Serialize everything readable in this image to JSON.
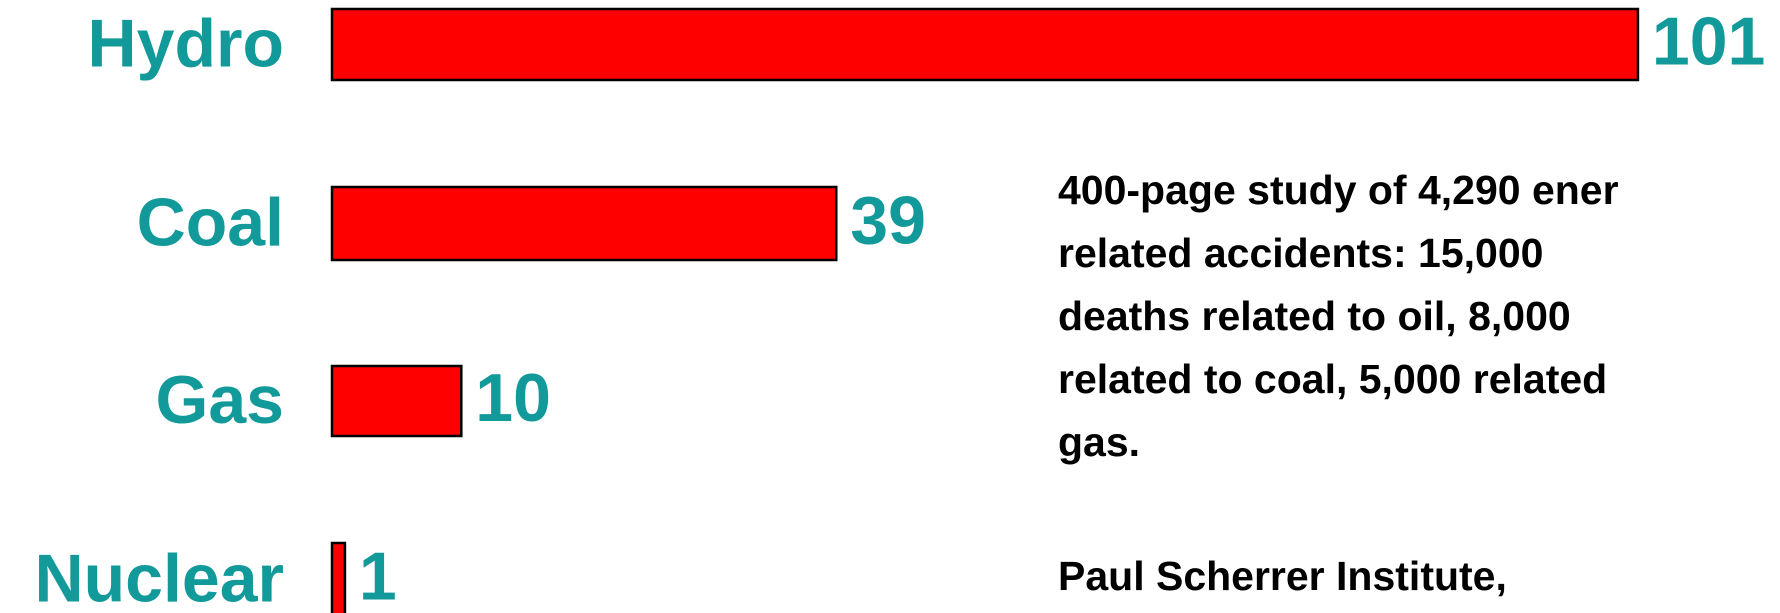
{
  "chart_data": {
    "type": "bar",
    "orientation": "horizontal",
    "categories": [
      "Hydro",
      "Coal",
      "Gas",
      "Nuclear"
    ],
    "values": [
      101,
      39,
      10,
      1
    ],
    "color": "#ff0000",
    "annotations": [
      [
        "400-page study of 4,290 ener",
        "related accidents: 15,000",
        "deaths related to oil, 8,000",
        "related to coal, 5,000 related",
        "gas."
      ],
      [
        "Paul Scherrer Institute,"
      ]
    ]
  }
}
